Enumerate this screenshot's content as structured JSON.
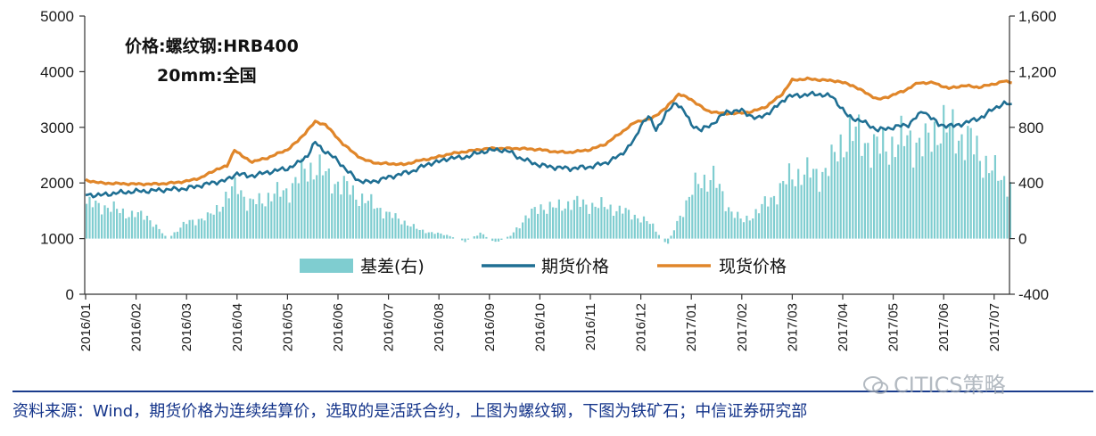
{
  "chart_data": {
    "type": "bar+line",
    "annotation_lines": [
      "价格:螺纹钢:HRB400",
      "20mm:全国"
    ],
    "x_ticks": [
      "2016/01",
      "2016/02",
      "2016/03",
      "2016/04",
      "2016/05",
      "2016/06",
      "2016/07",
      "2016/08",
      "2016/09",
      "2016/10",
      "2016/11",
      "2016/12",
      "2017/01",
      "2017/02",
      "2017/03",
      "2017/04",
      "2017/05",
      "2017/06",
      "2017/07"
    ],
    "y_left": {
      "min": 0,
      "max": 5000,
      "ticks": [
        "0",
        "1000",
        "2000",
        "3000",
        "4000",
        "5000"
      ]
    },
    "y_right": {
      "min": -400,
      "max": 1600,
      "ticks": [
        "-400",
        "0",
        "400",
        "800",
        "1,200",
        "1,600"
      ]
    },
    "legend": {
      "placement": "bottom-center",
      "entries": [
        "基差(右)",
        "期货价格",
        "现货价格"
      ]
    },
    "colors": {
      "basis": "#7fcdd0",
      "futures": "#1f6f93",
      "spot": "#e0862a",
      "axis": "#333333"
    },
    "series": [
      {
        "name": "期货价格",
        "axis": "left",
        "points": [
          [
            0,
            1790
          ],
          [
            0.3,
            1780
          ],
          [
            0.6,
            1820
          ],
          [
            1.0,
            1850
          ],
          [
            1.3,
            1860
          ],
          [
            1.6,
            1880
          ],
          [
            2.0,
            1900
          ],
          [
            2.3,
            1960
          ],
          [
            2.6,
            2020
          ],
          [
            2.8,
            2050
          ],
          [
            3.0,
            2180
          ],
          [
            3.2,
            2120
          ],
          [
            3.4,
            2150
          ],
          [
            3.7,
            2210
          ],
          [
            4.0,
            2260
          ],
          [
            4.2,
            2350
          ],
          [
            4.4,
            2500
          ],
          [
            4.55,
            2730
          ],
          [
            4.7,
            2600
          ],
          [
            4.85,
            2500
          ],
          [
            5.0,
            2400
          ],
          [
            5.2,
            2200
          ],
          [
            5.4,
            2050
          ],
          [
            5.6,
            2010
          ],
          [
            5.8,
            2050
          ],
          [
            6.0,
            2100
          ],
          [
            6.2,
            2150
          ],
          [
            6.5,
            2220
          ],
          [
            6.8,
            2350
          ],
          [
            7.0,
            2380
          ],
          [
            7.2,
            2450
          ],
          [
            7.4,
            2450
          ],
          [
            7.6,
            2480
          ],
          [
            7.8,
            2550
          ],
          [
            8.0,
            2580
          ],
          [
            8.2,
            2600
          ],
          [
            8.4,
            2560
          ],
          [
            8.6,
            2450
          ],
          [
            8.8,
            2380
          ],
          [
            9.0,
            2320
          ],
          [
            9.3,
            2280
          ],
          [
            9.6,
            2260
          ],
          [
            10.0,
            2290
          ],
          [
            10.3,
            2360
          ],
          [
            10.6,
            2500
          ],
          [
            10.9,
            2800
          ],
          [
            11.0,
            3050
          ],
          [
            11.15,
            3200
          ],
          [
            11.3,
            2950
          ],
          [
            11.5,
            3250
          ],
          [
            11.7,
            3450
          ],
          [
            11.85,
            3300
          ],
          [
            12.0,
            3050
          ],
          [
            12.2,
            2950
          ],
          [
            12.4,
            3050
          ],
          [
            12.7,
            3280
          ],
          [
            13.0,
            3300
          ],
          [
            13.3,
            3150
          ],
          [
            13.6,
            3300
          ],
          [
            13.9,
            3550
          ],
          [
            14.2,
            3580
          ],
          [
            14.5,
            3600
          ],
          [
            14.8,
            3550
          ],
          [
            15.1,
            3200
          ],
          [
            15.4,
            3100
          ],
          [
            15.7,
            2950
          ],
          [
            16.0,
            3000
          ],
          [
            16.3,
            3050
          ],
          [
            16.6,
            3300
          ],
          [
            16.9,
            3050
          ],
          [
            17.2,
            3020
          ],
          [
            17.5,
            3100
          ],
          [
            17.8,
            3200
          ],
          [
            18.0,
            3350
          ],
          [
            18.2,
            3420
          ],
          [
            18.35,
            3420
          ]
        ]
      },
      {
        "name": "现货价格",
        "axis": "left",
        "points": [
          [
            0,
            2050
          ],
          [
            0.3,
            2000
          ],
          [
            0.6,
            1990
          ],
          [
            1.0,
            1980
          ],
          [
            1.3,
            1980
          ],
          [
            1.6,
            1990
          ],
          [
            2.0,
            2030
          ],
          [
            2.3,
            2100
          ],
          [
            2.6,
            2250
          ],
          [
            2.8,
            2300
          ],
          [
            2.95,
            2600
          ],
          [
            3.1,
            2480
          ],
          [
            3.3,
            2380
          ],
          [
            3.6,
            2450
          ],
          [
            4.0,
            2600
          ],
          [
            4.2,
            2750
          ],
          [
            4.4,
            2950
          ],
          [
            4.55,
            3100
          ],
          [
            4.75,
            3050
          ],
          [
            4.9,
            2900
          ],
          [
            5.1,
            2700
          ],
          [
            5.3,
            2550
          ],
          [
            5.5,
            2420
          ],
          [
            5.8,
            2350
          ],
          [
            6.0,
            2350
          ],
          [
            6.3,
            2330
          ],
          [
            6.6,
            2400
          ],
          [
            6.9,
            2450
          ],
          [
            7.2,
            2520
          ],
          [
            7.5,
            2560
          ],
          [
            7.8,
            2600
          ],
          [
            8.0,
            2620
          ],
          [
            8.3,
            2620
          ],
          [
            8.6,
            2620
          ],
          [
            9.0,
            2600
          ],
          [
            9.3,
            2560
          ],
          [
            9.6,
            2550
          ],
          [
            10.0,
            2600
          ],
          [
            10.3,
            2700
          ],
          [
            10.6,
            2900
          ],
          [
            10.9,
            3100
          ],
          [
            11.2,
            3150
          ],
          [
            11.5,
            3350
          ],
          [
            11.75,
            3600
          ],
          [
            12.0,
            3500
          ],
          [
            12.3,
            3300
          ],
          [
            12.6,
            3250
          ],
          [
            12.9,
            3250
          ],
          [
            13.2,
            3280
          ],
          [
            13.5,
            3380
          ],
          [
            13.8,
            3600
          ],
          [
            14.0,
            3850
          ],
          [
            14.3,
            3870
          ],
          [
            14.6,
            3850
          ],
          [
            14.9,
            3830
          ],
          [
            15.2,
            3750
          ],
          [
            15.5,
            3600
          ],
          [
            15.7,
            3500
          ],
          [
            15.9,
            3550
          ],
          [
            16.2,
            3650
          ],
          [
            16.5,
            3800
          ],
          [
            16.8,
            3800
          ],
          [
            17.1,
            3700
          ],
          [
            17.4,
            3750
          ],
          [
            17.7,
            3720
          ],
          [
            18.0,
            3780
          ],
          [
            18.2,
            3830
          ],
          [
            18.35,
            3800
          ]
        ]
      },
      {
        "name": "基差(右)",
        "axis": "right",
        "points": [
          [
            0,
            250
          ],
          [
            0.4,
            230
          ],
          [
            0.8,
            180
          ],
          [
            1.2,
            160
          ],
          [
            1.6,
            0
          ],
          [
            2.0,
            120
          ],
          [
            2.4,
            150
          ],
          [
            2.8,
            300
          ],
          [
            3.0,
            400
          ],
          [
            3.2,
            240
          ],
          [
            3.6,
            300
          ],
          [
            4.0,
            350
          ],
          [
            4.3,
            480
          ],
          [
            4.55,
            520
          ],
          [
            4.8,
            430
          ],
          [
            5.1,
            380
          ],
          [
            5.4,
            300
          ],
          [
            5.7,
            240
          ],
          [
            6.0,
            170
          ],
          [
            6.3,
            120
          ],
          [
            6.6,
            60
          ],
          [
            6.9,
            40
          ],
          [
            7.2,
            20
          ],
          [
            7.5,
            -20
          ],
          [
            7.8,
            40
          ],
          [
            8.1,
            -30
          ],
          [
            8.4,
            20
          ],
          [
            8.7,
            150
          ],
          [
            9.0,
            230
          ],
          [
            9.3,
            220
          ],
          [
            9.6,
            260
          ],
          [
            10.0,
            240
          ],
          [
            10.3,
            230
          ],
          [
            10.6,
            200
          ],
          [
            10.9,
            160
          ],
          [
            11.2,
            100
          ],
          [
            11.5,
            -50
          ],
          [
            11.8,
            200
          ],
          [
            12.1,
            400
          ],
          [
            12.4,
            450
          ],
          [
            12.7,
            230
          ],
          [
            13.0,
            120
          ],
          [
            13.3,
            200
          ],
          [
            13.6,
            300
          ],
          [
            13.9,
            430
          ],
          [
            14.2,
            480
          ],
          [
            14.5,
            450
          ],
          [
            14.8,
            560
          ],
          [
            15.1,
            780
          ],
          [
            15.4,
            700
          ],
          [
            15.7,
            650
          ],
          [
            16.0,
            680
          ],
          [
            16.3,
            720
          ],
          [
            16.6,
            660
          ],
          [
            16.9,
            820
          ],
          [
            17.2,
            760
          ],
          [
            17.5,
            700
          ],
          [
            17.8,
            550
          ],
          [
            18.1,
            430
          ],
          [
            18.35,
            400
          ]
        ]
      }
    ]
  },
  "source_text": "资料来源：Wind，期货价格为连续结算价，选取的是活跃合约，上图为螺纹钢，下图为铁矿石；中信证券研究部",
  "watermark_text": "CITICS策略"
}
